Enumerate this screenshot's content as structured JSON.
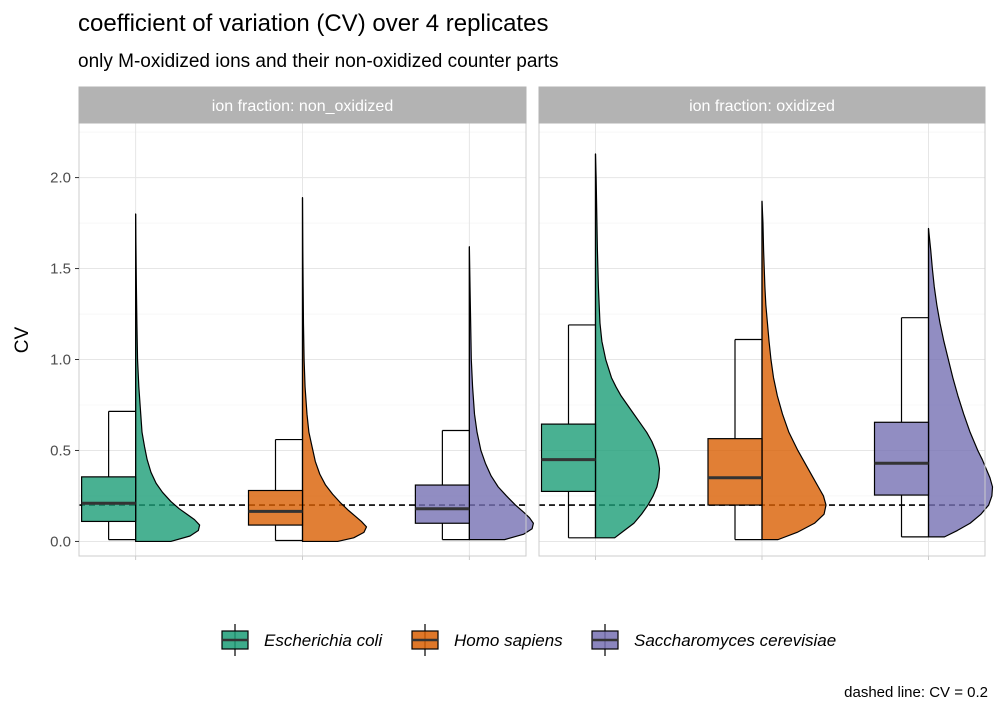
{
  "chart_data": {
    "type": "raincloud (half-violin + boxplot), faceted",
    "title": "coefficient of variation (CV) over 4 replicates",
    "subtitle": "only M-oxidized ions and their non-oxidized counter parts",
    "ylabel": "CV",
    "xlabel": "",
    "ylim": [
      -0.08,
      2.3
    ],
    "y_ticks": [
      0.0,
      0.5,
      1.0,
      1.5,
      2.0
    ],
    "y_tick_labels": [
      "0.0",
      "0.5",
      "1.0",
      "1.5",
      "2.0"
    ],
    "reference_line": {
      "value": 0.2,
      "style": "dashed"
    },
    "caption": "dashed line: CV = 0.2",
    "legend_position": "bottom",
    "groups": [
      {
        "name": "Escherichia coli",
        "color": "#1B9E77"
      },
      {
        "name": "Homo sapiens",
        "color": "#D95F02"
      },
      {
        "name": "Saccharomyces cerevisiae",
        "color": "#7570B3"
      }
    ],
    "facets": [
      {
        "label": "ion fraction: non_oxidized",
        "boxes": [
          {
            "group": "Escherichia coli",
            "whisker_low": 0.01,
            "q1": 0.11,
            "median": 0.21,
            "q3": 0.355,
            "whisker_high": 0.715,
            "violin_min": 0.0,
            "violin_max": 1.8,
            "density": [
              [
                0.0,
                0.55
              ],
              [
                0.03,
                0.85
              ],
              [
                0.06,
                0.98
              ],
              [
                0.09,
                1.0
              ],
              [
                0.12,
                0.92
              ],
              [
                0.15,
                0.8
              ],
              [
                0.18,
                0.68
              ],
              [
                0.22,
                0.55
              ],
              [
                0.27,
                0.42
              ],
              [
                0.32,
                0.32
              ],
              [
                0.38,
                0.24
              ],
              [
                0.45,
                0.18
              ],
              [
                0.52,
                0.14
              ],
              [
                0.6,
                0.1
              ],
              [
                0.7,
                0.08
              ],
              [
                0.85,
                0.05
              ],
              [
                1.0,
                0.03
              ],
              [
                1.2,
                0.02
              ],
              [
                1.4,
                0.012
              ],
              [
                1.6,
                0.006
              ],
              [
                1.8,
                0.0
              ]
            ]
          },
          {
            "group": "Homo sapiens",
            "whisker_low": 0.005,
            "q1": 0.09,
            "median": 0.165,
            "q3": 0.28,
            "whisker_high": 0.56,
            "violin_min": 0.0,
            "violin_max": 1.89,
            "density": [
              [
                0.0,
                0.55
              ],
              [
                0.02,
                0.8
              ],
              [
                0.05,
                0.96
              ],
              [
                0.08,
                1.0
              ],
              [
                0.11,
                0.92
              ],
              [
                0.14,
                0.82
              ],
              [
                0.17,
                0.72
              ],
              [
                0.21,
                0.6
              ],
              [
                0.26,
                0.47
              ],
              [
                0.31,
                0.36
              ],
              [
                0.37,
                0.27
              ],
              [
                0.44,
                0.2
              ],
              [
                0.52,
                0.15
              ],
              [
                0.6,
                0.1
              ],
              [
                0.7,
                0.07
              ],
              [
                0.85,
                0.04
              ],
              [
                1.0,
                0.025
              ],
              [
                1.2,
                0.015
              ],
              [
                1.4,
                0.01
              ],
              [
                1.6,
                0.005
              ],
              [
                1.89,
                0.0
              ]
            ]
          },
          {
            "group": "Saccharomyces cerevisiae",
            "whisker_low": 0.01,
            "q1": 0.1,
            "median": 0.18,
            "q3": 0.31,
            "whisker_high": 0.61,
            "violin_min": 0.01,
            "violin_max": 1.62,
            "density": [
              [
                0.01,
                0.55
              ],
              [
                0.04,
                0.85
              ],
              [
                0.07,
                0.98
              ],
              [
                0.1,
                1.0
              ],
              [
                0.13,
                0.94
              ],
              [
                0.16,
                0.85
              ],
              [
                0.2,
                0.72
              ],
              [
                0.25,
                0.58
              ],
              [
                0.3,
                0.45
              ],
              [
                0.36,
                0.34
              ],
              [
                0.43,
                0.25
              ],
              [
                0.5,
                0.18
              ],
              [
                0.6,
                0.12
              ],
              [
                0.7,
                0.08
              ],
              [
                0.85,
                0.05
              ],
              [
                1.0,
                0.03
              ],
              [
                1.2,
                0.02
              ],
              [
                1.4,
                0.01
              ],
              [
                1.62,
                0.0
              ]
            ]
          }
        ]
      },
      {
        "label": "ion fraction: oxidized",
        "boxes": [
          {
            "group": "Escherichia coli",
            "whisker_low": 0.02,
            "q1": 0.275,
            "median": 0.45,
            "q3": 0.645,
            "whisker_high": 1.19,
            "violin_min": 0.02,
            "violin_max": 2.13,
            "density": [
              [
                0.02,
                0.3
              ],
              [
                0.06,
                0.45
              ],
              [
                0.1,
                0.6
              ],
              [
                0.15,
                0.72
              ],
              [
                0.2,
                0.82
              ],
              [
                0.25,
                0.9
              ],
              [
                0.3,
                0.96
              ],
              [
                0.35,
                0.99
              ],
              [
                0.4,
                1.0
              ],
              [
                0.45,
                0.98
              ],
              [
                0.5,
                0.94
              ],
              [
                0.55,
                0.88
              ],
              [
                0.6,
                0.8
              ],
              [
                0.65,
                0.7
              ],
              [
                0.7,
                0.6
              ],
              [
                0.75,
                0.5
              ],
              [
                0.8,
                0.4
              ],
              [
                0.85,
                0.32
              ],
              [
                0.9,
                0.25
              ],
              [
                1.0,
                0.16
              ],
              [
                1.1,
                0.1
              ],
              [
                1.2,
                0.07
              ],
              [
                1.4,
                0.045
              ],
              [
                1.6,
                0.03
              ],
              [
                1.8,
                0.02
              ],
              [
                2.0,
                0.01
              ],
              [
                2.13,
                0.0
              ]
            ]
          },
          {
            "group": "Homo sapiens",
            "whisker_low": 0.01,
            "q1": 0.2,
            "median": 0.35,
            "q3": 0.565,
            "whisker_high": 1.11,
            "violin_min": 0.01,
            "violin_max": 1.87,
            "density": [
              [
                0.01,
                0.25
              ],
              [
                0.05,
                0.55
              ],
              [
                0.1,
                0.82
              ],
              [
                0.15,
                0.97
              ],
              [
                0.2,
                1.0
              ],
              [
                0.25,
                0.96
              ],
              [
                0.3,
                0.88
              ],
              [
                0.35,
                0.8
              ],
              [
                0.4,
                0.72
              ],
              [
                0.45,
                0.64
              ],
              [
                0.5,
                0.56
              ],
              [
                0.55,
                0.49
              ],
              [
                0.6,
                0.42
              ],
              [
                0.7,
                0.32
              ],
              [
                0.8,
                0.24
              ],
              [
                0.9,
                0.18
              ],
              [
                1.0,
                0.14
              ],
              [
                1.1,
                0.11
              ],
              [
                1.2,
                0.085
              ],
              [
                1.3,
                0.06
              ],
              [
                1.4,
                0.045
              ],
              [
                1.5,
                0.035
              ],
              [
                1.6,
                0.025
              ],
              [
                1.75,
                0.015
              ],
              [
                1.87,
                0.0
              ]
            ]
          },
          {
            "group": "Saccharomyces cerevisiae",
            "whisker_low": 0.025,
            "q1": 0.255,
            "median": 0.43,
            "q3": 0.655,
            "whisker_high": 1.23,
            "violin_min": 0.025,
            "violin_max": 1.72,
            "density": [
              [
                0.025,
                0.25
              ],
              [
                0.06,
                0.45
              ],
              [
                0.1,
                0.65
              ],
              [
                0.15,
                0.82
              ],
              [
                0.2,
                0.94
              ],
              [
                0.25,
                0.99
              ],
              [
                0.3,
                1.0
              ],
              [
                0.35,
                0.96
              ],
              [
                0.4,
                0.9
              ],
              [
                0.45,
                0.84
              ],
              [
                0.5,
                0.77
              ],
              [
                0.55,
                0.71
              ],
              [
                0.6,
                0.65
              ],
              [
                0.7,
                0.55
              ],
              [
                0.8,
                0.46
              ],
              [
                0.9,
                0.38
              ],
              [
                1.0,
                0.31
              ],
              [
                1.1,
                0.24
              ],
              [
                1.2,
                0.18
              ],
              [
                1.3,
                0.13
              ],
              [
                1.4,
                0.09
              ],
              [
                1.5,
                0.06
              ],
              [
                1.6,
                0.035
              ],
              [
                1.72,
                0.0
              ]
            ]
          }
        ]
      }
    ]
  }
}
